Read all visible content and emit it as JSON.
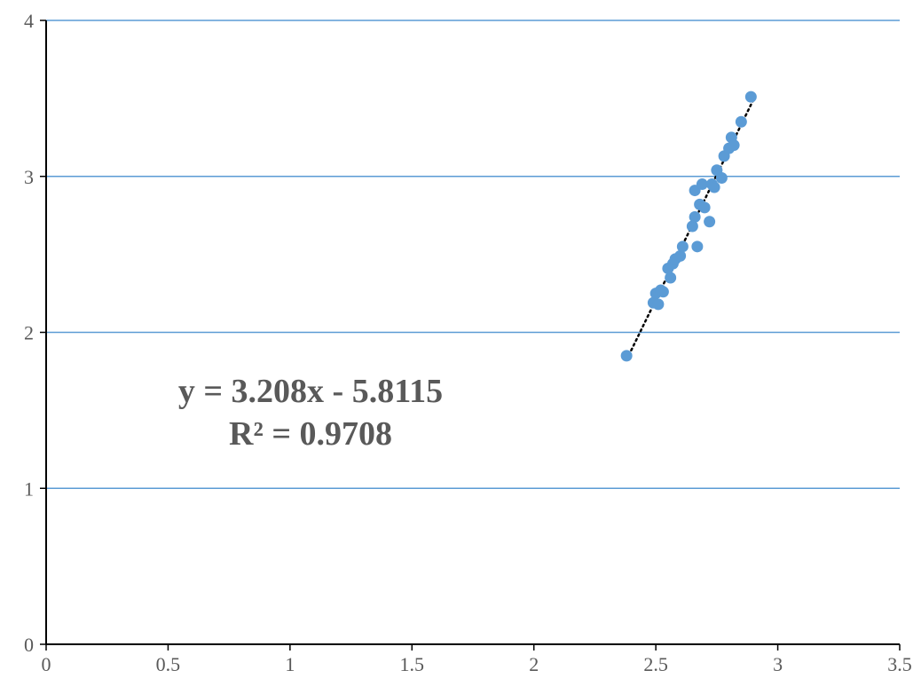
{
  "chart_data": {
    "type": "scatter",
    "title": "",
    "xlabel": "",
    "ylabel": "",
    "xlim": [
      0,
      3.5
    ],
    "ylim": [
      0,
      4
    ],
    "x_ticks": [
      "0",
      "0.5",
      "1",
      "1.5",
      "2",
      "2.5",
      "3",
      "3.5"
    ],
    "y_ticks": [
      "0",
      "1",
      "2",
      "3",
      "4"
    ],
    "horizontal_grid": true,
    "vertical_grid": false,
    "colors": {
      "points": "#5B9BD5",
      "grid": "#5B9BD5",
      "axis": "#000000",
      "trendline": "#000000",
      "text": "#595959"
    },
    "series": [
      {
        "points": [
          [
            2.38,
            1.85
          ],
          [
            2.49,
            2.19
          ],
          [
            2.5,
            2.25
          ],
          [
            2.51,
            2.18
          ],
          [
            2.52,
            2.27
          ],
          [
            2.53,
            2.26
          ],
          [
            2.55,
            2.41
          ],
          [
            2.56,
            2.35
          ],
          [
            2.57,
            2.44
          ],
          [
            2.58,
            2.47
          ],
          [
            2.6,
            2.49
          ],
          [
            2.61,
            2.55
          ],
          [
            2.65,
            2.68
          ],
          [
            2.66,
            2.74
          ],
          [
            2.66,
            2.91
          ],
          [
            2.67,
            2.55
          ],
          [
            2.68,
            2.82
          ],
          [
            2.69,
            2.95
          ],
          [
            2.7,
            2.8
          ],
          [
            2.72,
            2.71
          ],
          [
            2.73,
            2.95
          ],
          [
            2.74,
            2.93
          ],
          [
            2.75,
            3.04
          ],
          [
            2.77,
            2.99
          ],
          [
            2.78,
            3.13
          ],
          [
            2.8,
            3.18
          ],
          [
            2.81,
            3.25
          ],
          [
            2.82,
            3.2
          ],
          [
            2.85,
            3.35
          ],
          [
            2.89,
            3.51
          ]
        ]
      }
    ],
    "trendline": {
      "slope": 3.208,
      "intercept": -5.8115,
      "x_range": [
        2.38,
        2.9
      ],
      "equation": "y = 3.208x - 5.8115",
      "r_squared": "R² = 0.9708"
    }
  }
}
